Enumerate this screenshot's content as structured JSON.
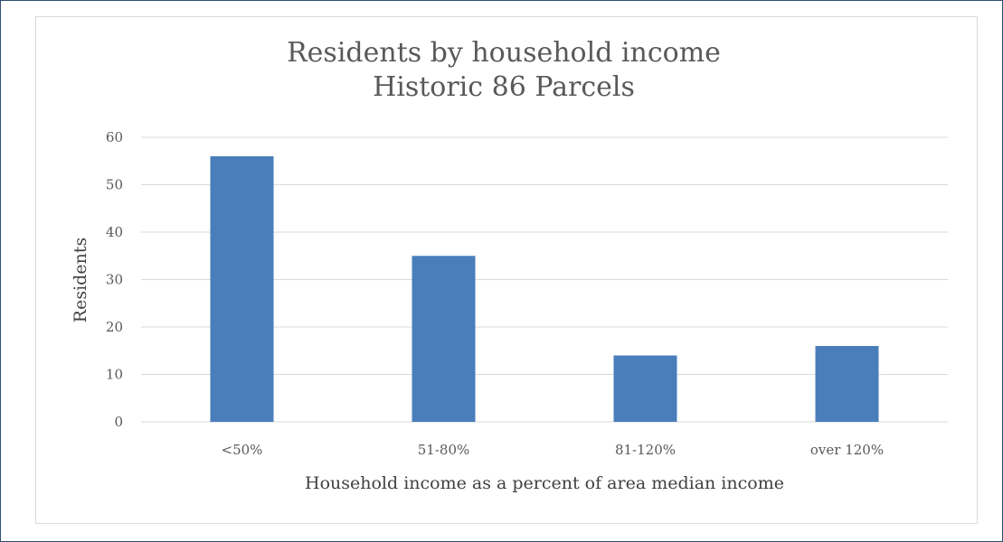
{
  "chart_data": {
    "type": "bar",
    "title": "Residents by household income",
    "subtitle": "Historic 86 Parcels",
    "categories": [
      "<50%",
      "51-80%",
      "81-120%",
      "over 120%"
    ],
    "values": [
      56,
      35,
      14,
      16
    ],
    "xlabel": "Household income as a percent of area median income",
    "ylabel": "Residents",
    "ylim": [
      0,
      60
    ],
    "yticks": [
      0,
      10,
      20,
      30,
      40,
      50,
      60
    ],
    "grid": true,
    "legend": "none",
    "bar_color": "#4a7ebb"
  }
}
